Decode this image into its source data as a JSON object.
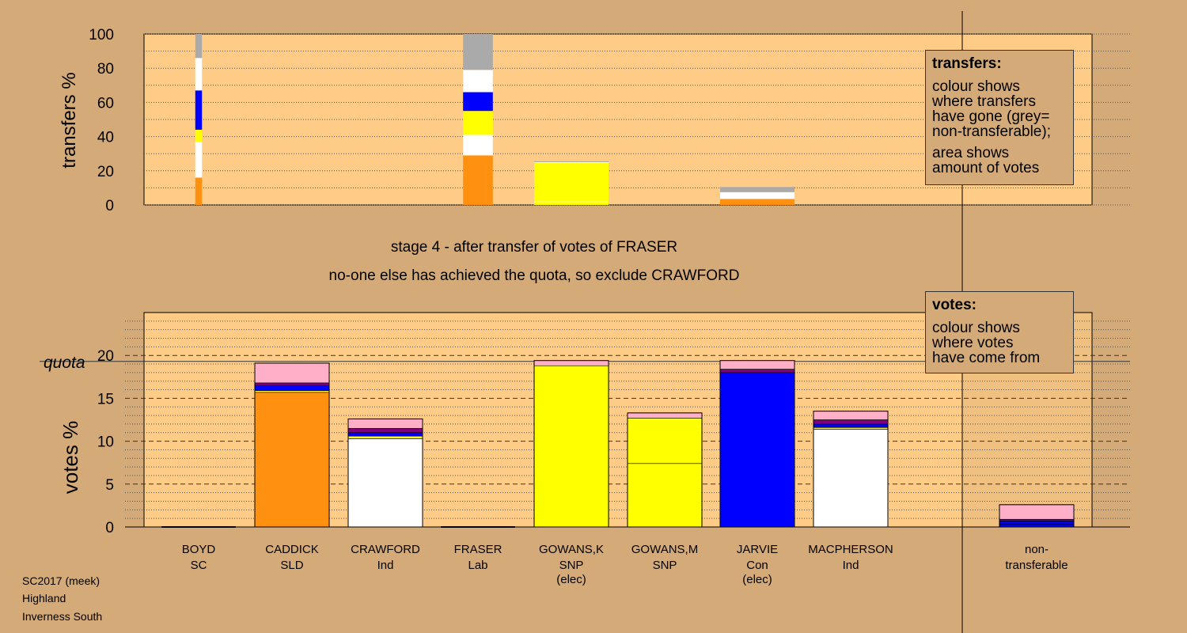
{
  "colors": {
    "background": "#d4aa78",
    "plot_background": "#ffcc88",
    "SLD": "#ff9010",
    "Ind_Crawford": "#ffffff",
    "Ind_MacPherson": "#ffffff",
    "SNP": "#ffff00",
    "Con": "#0000ff",
    "Lab": "#ff0000",
    "SC": "#800080",
    "pink": "#ffb0c8",
    "nontransferable": "#aaaaaa"
  },
  "stage_title": "stage 4 - after transfer of votes of FRASER",
  "stage_subtitle": "no-one else has achieved the quota, so exclude CRAWFORD",
  "footer": {
    "line1": "SC2017 (meek)",
    "line2": "Highland",
    "line3": "Inverness South"
  },
  "transfers_box": {
    "heading": "transfers:",
    "line1": "colour shows",
    "line2": "where transfers",
    "line3": "have gone (grey=",
    "line4": "non-transferable);",
    "line5": "area shows",
    "line6": "amount of votes"
  },
  "votes_box": {
    "heading": "votes:",
    "line1": "colour shows",
    "line2": "where votes",
    "line3": "have come from"
  },
  "chart_data": [
    {
      "type": "bar",
      "name": "transfers",
      "ylabel": "transfers %",
      "ylim": [
        0,
        100
      ],
      "yticks": [
        0,
        20,
        40,
        60,
        80,
        100
      ],
      "grid": "dotted",
      "categories": [
        "BOYD",
        "CADDICK",
        "CRAWFORD",
        "FRASER",
        "GOWANS,K",
        "GOWANS,M",
        "JARVIE",
        "MACPHERSON"
      ],
      "bars": [
        {
          "category": "BOYD",
          "width_fraction": 0.09,
          "segments": [
            {
              "color": "#ff9010",
              "value": 16
            },
            {
              "color": "#ffffff",
              "value": 21
            },
            {
              "color": "#ffff00",
              "value": 7
            },
            {
              "color": "#0000ff",
              "value": 23
            },
            {
              "color": "#ffffff",
              "value": 19
            },
            {
              "color": "#aaaaaa",
              "value": 14
            }
          ]
        },
        {
          "category": "FRASER",
          "width_fraction": 0.4,
          "segments": [
            {
              "color": "#ff9010",
              "value": 29
            },
            {
              "color": "#ffffff",
              "value": 12
            },
            {
              "color": "#ffff00",
              "value": 14
            },
            {
              "color": "#0000ff",
              "value": 11
            },
            {
              "color": "#ffffff",
              "value": 13
            },
            {
              "color": "#aaaaaa",
              "value": 21
            }
          ]
        },
        {
          "category": "GOWANS,K",
          "width_fraction": 1.0,
          "segments": [
            {
              "color": "#ffff00",
              "value": 1.5
            },
            {
              "color": "#ffffff",
              "value": 0.5
            },
            {
              "color": "#ffff00",
              "value": 22.5
            },
            {
              "color": "#ffffff",
              "value": 0.5
            },
            {
              "color": "#aaaaaa",
              "value": 0.5
            }
          ]
        },
        {
          "category": "JARVIE",
          "width_fraction": 1.0,
          "segments": [
            {
              "color": "#ff9010",
              "value": 3.5
            },
            {
              "color": "#ffffff",
              "value": 4
            },
            {
              "color": "#aaaaaa",
              "value": 3
            }
          ]
        }
      ]
    },
    {
      "type": "bar",
      "name": "votes",
      "ylabel": "votes %",
      "ylim": [
        0,
        25
      ],
      "yticks": [
        0,
        5,
        10,
        15,
        20
      ],
      "quota_label": "quota",
      "quota": 19.3,
      "grid": "dashed",
      "categories": [
        {
          "name": "BOYD",
          "party": "SC",
          "status": ""
        },
        {
          "name": "CADDICK",
          "party": "SLD",
          "status": ""
        },
        {
          "name": "CRAWFORD",
          "party": "Ind",
          "status": ""
        },
        {
          "name": "FRASER",
          "party": "Lab",
          "status": ""
        },
        {
          "name": "GOWANS,K",
          "party": "SNP",
          "status": "(elec)"
        },
        {
          "name": "GOWANS,M",
          "party": "SNP",
          "status": ""
        },
        {
          "name": "JARVIE",
          "party": "Con",
          "status": "(elec)"
        },
        {
          "name": "MACPHERSON",
          "party": "Ind",
          "status": ""
        }
      ],
      "nontransferable_label_1": "non-",
      "nontransferable_label_2": "transferable",
      "stacks": [
        {
          "category": "BOYD",
          "segments": []
        },
        {
          "category": "CADDICK",
          "segments": [
            {
              "color": "#ff9010",
              "value": 15.7
            },
            {
              "color": "#ffff00",
              "value": 0.2
            },
            {
              "color": "#0000ff",
              "value": 0.6
            },
            {
              "color": "#800080",
              "value": 0.3
            },
            {
              "color": "#ffb0c8",
              "value": 2.3
            }
          ]
        },
        {
          "category": "CRAWFORD",
          "segments": [
            {
              "color": "#ffffff",
              "value": 10.3
            },
            {
              "color": "#ffff00",
              "value": 0.3
            },
            {
              "color": "#0000ff",
              "value": 0.4
            },
            {
              "color": "#800080",
              "value": 0.5
            },
            {
              "color": "#ffb0c8",
              "value": 1.1
            }
          ]
        },
        {
          "category": "FRASER",
          "segments": []
        },
        {
          "category": "GOWANS,K",
          "segments": [
            {
              "color": "#ffff00",
              "value": 18.8
            },
            {
              "color": "#ffb0c8",
              "value": 0.6
            }
          ]
        },
        {
          "category": "GOWANS,M",
          "segments": [
            {
              "color": "#ffff00",
              "value": 7.4
            },
            {
              "color": "#ffff00",
              "value": 5.3
            },
            {
              "color": "#ffb0c8",
              "value": 0.6
            }
          ]
        },
        {
          "category": "JARVIE",
          "segments": [
            {
              "color": "#0000ff",
              "value": 18.0
            },
            {
              "color": "#800080",
              "value": 0.4
            },
            {
              "color": "#ffb0c8",
              "value": 1.0
            }
          ]
        },
        {
          "category": "MACPHERSON",
          "segments": [
            {
              "color": "#ffffff",
              "value": 11.4
            },
            {
              "color": "#ffff00",
              "value": 0.2
            },
            {
              "color": "#0000ff",
              "value": 0.4
            },
            {
              "color": "#800080",
              "value": 0.5
            },
            {
              "color": "#ffb0c8",
              "value": 1.0
            }
          ]
        },
        {
          "category": "non-transferable",
          "segments": [
            {
              "color": "#0000ff",
              "value": 0.3
            },
            {
              "color": "#0000ff",
              "value": 0.4
            },
            {
              "color": "#800080",
              "value": 0.2
            },
            {
              "color": "#ffb0c8",
              "value": 1.7
            }
          ]
        }
      ]
    }
  ]
}
